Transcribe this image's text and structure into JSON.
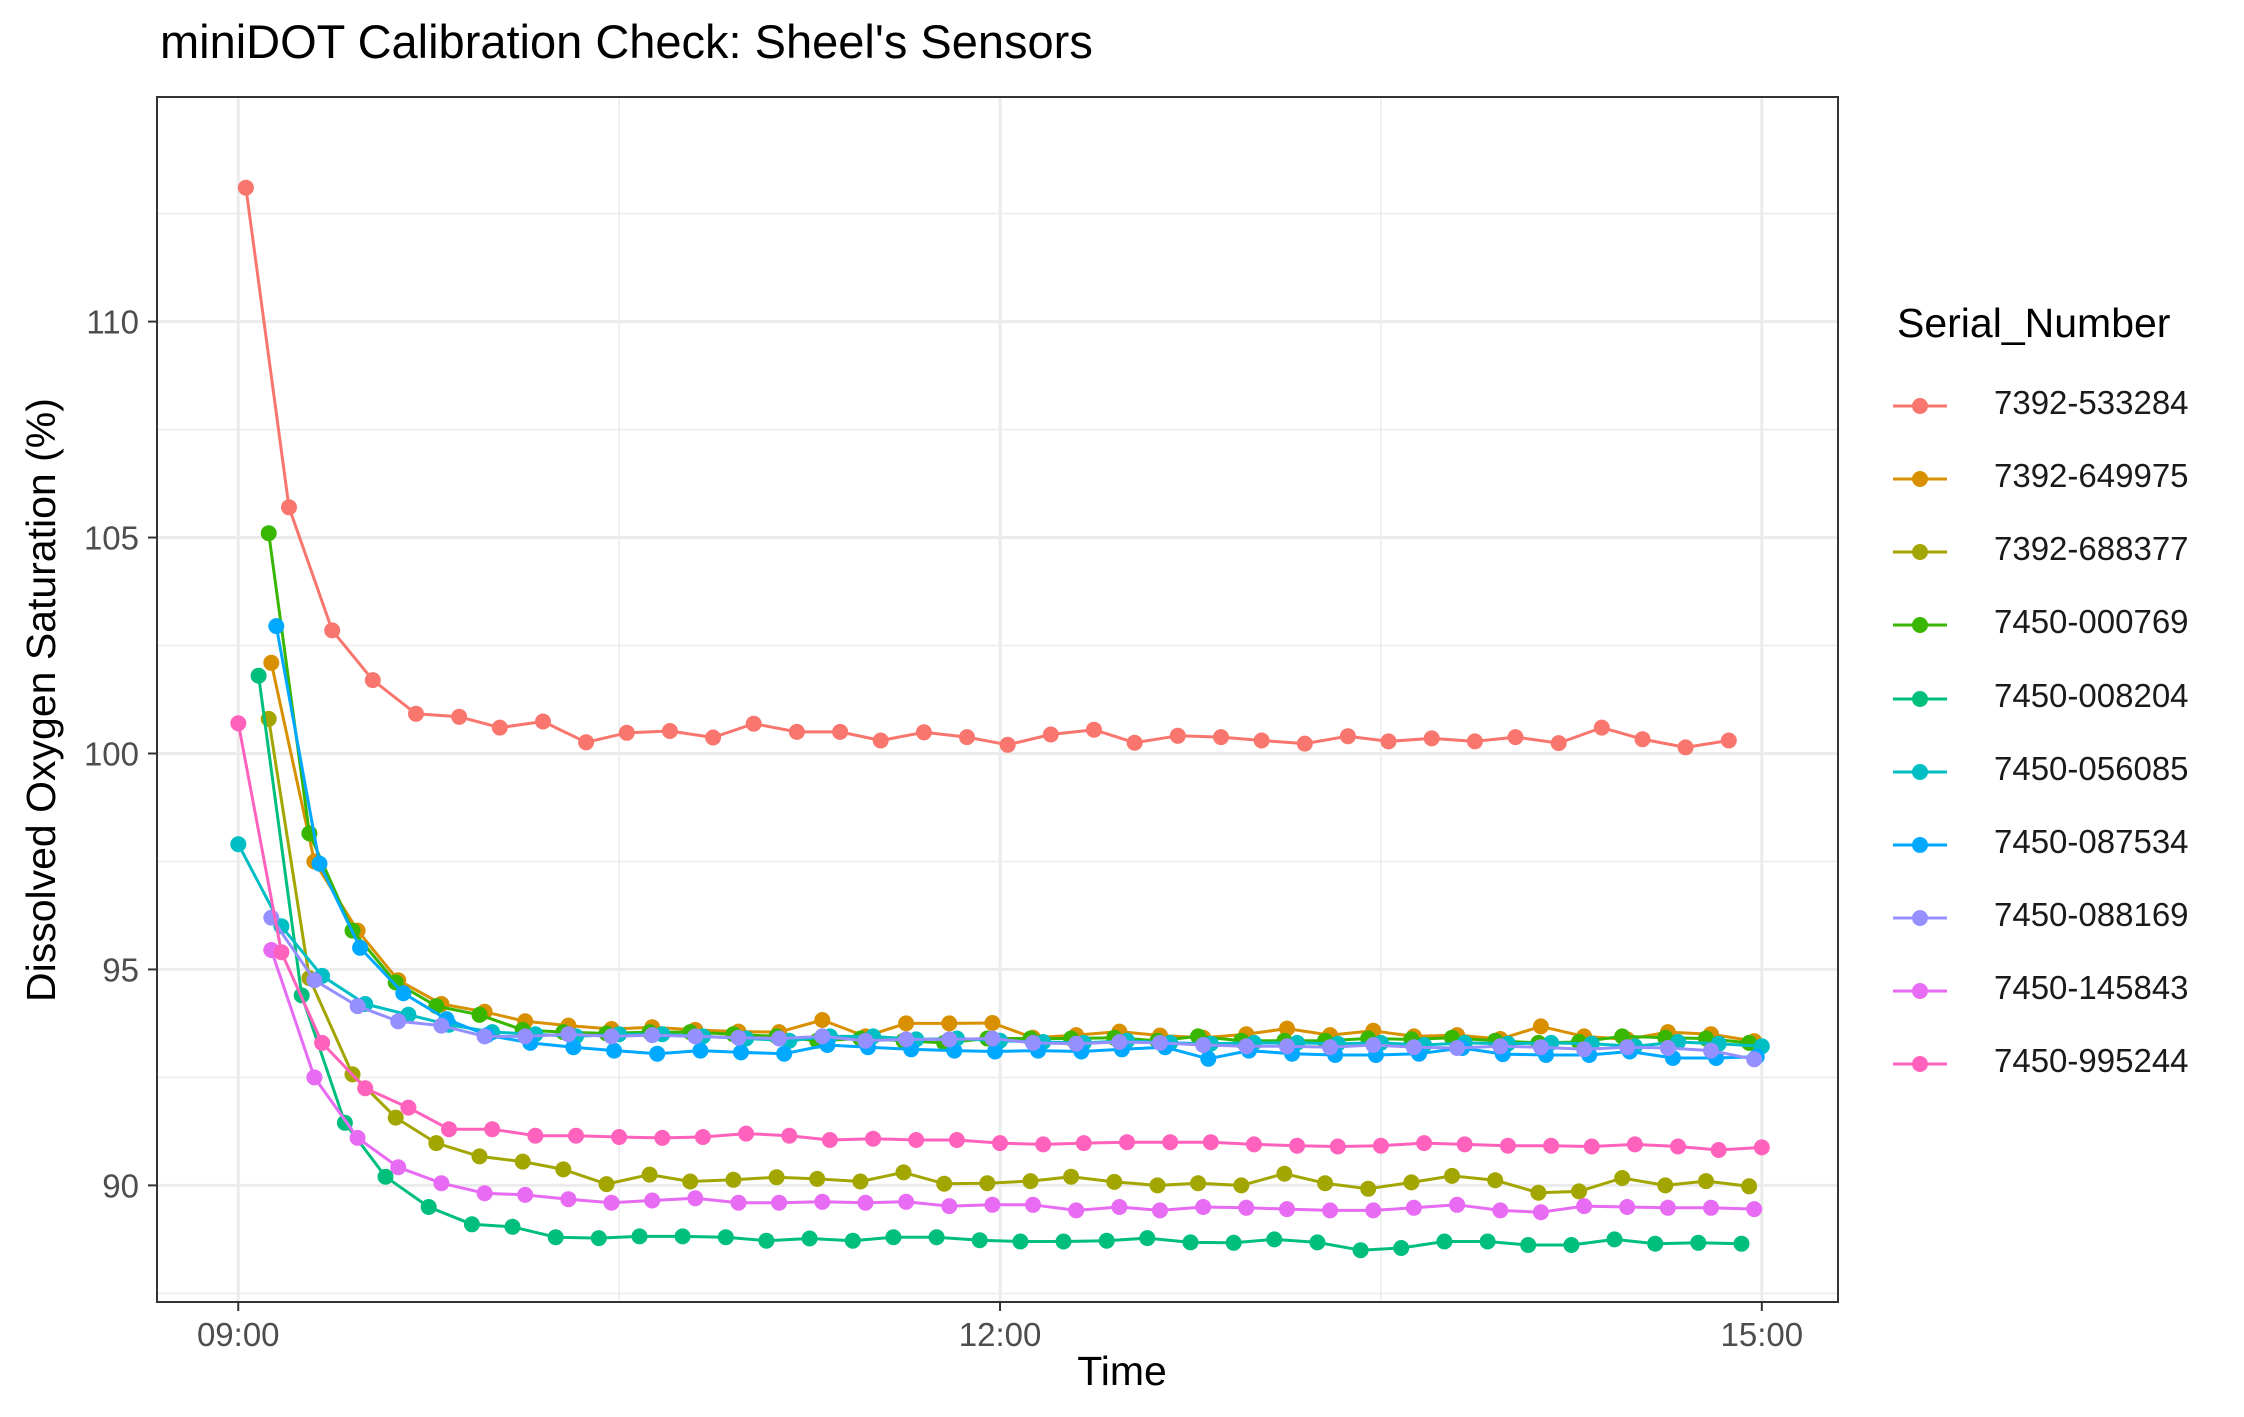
{
  "chart_data": {
    "type": "line",
    "title": "miniDOT Calibration Check: Sheel's Sensors",
    "xlabel": "Time",
    "ylabel": "Dissolved Oxygen Saturation (%)",
    "xlim": [
      -0.32,
      6.3
    ],
    "ylim": [
      87.3,
      115.2
    ],
    "x_ticks": [
      {
        "value": 0,
        "label": "09:00"
      },
      {
        "value": 3,
        "label": "12:00"
      },
      {
        "value": 6,
        "label": "15:00"
      }
    ],
    "y_ticks": [
      {
        "value": 90,
        "label": "90"
      },
      {
        "value": 95,
        "label": "95"
      },
      {
        "value": 100,
        "label": "100"
      },
      {
        "value": 105,
        "label": "105"
      },
      {
        "value": 110,
        "label": "110"
      }
    ],
    "grid": true,
    "legend": {
      "title": "Serial_Number",
      "placement": "right"
    },
    "series": [
      {
        "name": "7392-533284",
        "color": "#F8766D",
        "x": [
          0.03,
          0.2,
          0.37,
          0.53,
          0.7,
          0.87,
          1.03,
          1.2,
          1.37,
          1.53,
          1.7,
          1.87,
          2.03,
          2.2,
          2.37,
          2.53,
          2.7,
          2.87,
          3.03,
          3.2,
          3.37,
          3.53,
          3.7,
          3.87,
          4.03,
          4.2,
          4.37,
          4.53,
          4.7,
          4.87,
          5.03,
          5.2,
          5.37,
          5.53,
          5.7,
          5.87
        ],
        "y": [
          113.1,
          105.7,
          102.85,
          101.7,
          100.92,
          100.85,
          100.6,
          100.74,
          100.26,
          100.48,
          100.52,
          100.37,
          100.69,
          100.5,
          100.5,
          100.3,
          100.49,
          100.38,
          100.2,
          100.44,
          100.55,
          100.25,
          100.41,
          100.38,
          100.3,
          100.23,
          100.4,
          100.28,
          100.35,
          100.28,
          100.38,
          100.24,
          100.6,
          100.33,
          100.14,
          100.3
        ]
      },
      {
        "name": "7392-649975",
        "color": "#D89000",
        "x": [
          0.13,
          0.3,
          0.47,
          0.63,
          0.8,
          0.97,
          1.13,
          1.3,
          1.47,
          1.63,
          1.8,
          1.97,
          2.13,
          2.3,
          2.47,
          2.63,
          2.8,
          2.97,
          3.13,
          3.3,
          3.47,
          3.63,
          3.8,
          3.97,
          4.13,
          4.3,
          4.47,
          4.63,
          4.8,
          4.97,
          5.13,
          5.3,
          5.47,
          5.63,
          5.8,
          5.97
        ],
        "y": [
          102.1,
          97.5,
          95.9,
          94.75,
          94.2,
          94.02,
          93.8,
          93.7,
          93.62,
          93.66,
          93.6,
          93.56,
          93.55,
          93.83,
          93.45,
          93.75,
          93.75,
          93.76,
          93.42,
          93.48,
          93.56,
          93.47,
          93.42,
          93.5,
          93.63,
          93.48,
          93.58,
          93.45,
          93.48,
          93.39,
          93.68,
          93.45,
          93.38,
          93.55,
          93.5,
          93.34
        ]
      },
      {
        "name": "7392-688377",
        "color": "#A3A500",
        "x": [
          0.12,
          0.28,
          0.45,
          0.62,
          0.78,
          0.95,
          1.12,
          1.28,
          1.45,
          1.62,
          1.78,
          1.95,
          2.12,
          2.28,
          2.45,
          2.62,
          2.78,
          2.95,
          3.12,
          3.28,
          3.45,
          3.62,
          3.78,
          3.95,
          4.12,
          4.28,
          4.45,
          4.62,
          4.78,
          4.95,
          5.12,
          5.28,
          5.45,
          5.62,
          5.78,
          5.95
        ],
        "y": [
          100.8,
          94.8,
          92.57,
          91.57,
          90.98,
          90.67,
          90.55,
          90.37,
          90.03,
          90.25,
          90.09,
          90.13,
          90.19,
          90.15,
          90.09,
          90.3,
          90.04,
          90.05,
          90.1,
          90.2,
          90.08,
          90.0,
          90.05,
          90.0,
          90.27,
          90.05,
          89.92,
          90.07,
          90.22,
          90.12,
          89.83,
          89.86,
          90.17,
          90.0,
          90.1,
          89.98
        ]
      },
      {
        "name": "7450-000769",
        "color": "#39B600",
        "x": [
          0.12,
          0.28,
          0.45,
          0.62,
          0.78,
          0.95,
          1.12,
          1.28,
          1.45,
          1.62,
          1.78,
          1.95,
          2.12,
          2.28,
          2.45,
          2.62,
          2.78,
          2.95,
          3.12,
          3.28,
          3.45,
          3.62,
          3.78,
          3.95,
          4.12,
          4.28,
          4.45,
          4.62,
          4.78,
          4.95,
          5.12,
          5.28,
          5.45,
          5.62,
          5.78,
          5.95
        ],
        "y": [
          105.1,
          98.15,
          95.9,
          94.7,
          94.15,
          93.95,
          93.6,
          93.55,
          93.52,
          93.55,
          93.55,
          93.5,
          93.45,
          93.35,
          93.4,
          93.35,
          93.3,
          93.4,
          93.4,
          93.4,
          93.42,
          93.35,
          93.45,
          93.35,
          93.35,
          93.35,
          93.4,
          93.38,
          93.42,
          93.35,
          93.3,
          93.32,
          93.45,
          93.42,
          93.4,
          93.3
        ]
      },
      {
        "name": "7450-008204",
        "color": "#00BF7D",
        "x": [
          0.08,
          0.25,
          0.42,
          0.58,
          0.75,
          0.92,
          1.08,
          1.25,
          1.42,
          1.58,
          1.75,
          1.92,
          2.08,
          2.25,
          2.42,
          2.58,
          2.75,
          2.92,
          3.08,
          3.25,
          3.42,
          3.58,
          3.75,
          3.92,
          4.08,
          4.25,
          4.42,
          4.58,
          4.75,
          4.92,
          5.08,
          5.25,
          5.42,
          5.58,
          5.75,
          5.92
        ],
        "y": [
          101.8,
          94.4,
          91.45,
          90.2,
          89.5,
          89.1,
          89.04,
          88.8,
          88.78,
          88.82,
          88.82,
          88.8,
          88.72,
          88.77,
          88.72,
          88.8,
          88.8,
          88.73,
          88.7,
          88.7,
          88.72,
          88.78,
          88.68,
          88.67,
          88.75,
          88.68,
          88.5,
          88.55,
          88.7,
          88.7,
          88.62,
          88.62,
          88.75,
          88.65,
          88.67,
          88.65
        ]
      },
      {
        "name": "7450-056085",
        "color": "#00BFC4",
        "x": [
          0,
          0.17,
          0.33,
          0.5,
          0.67,
          0.83,
          1.0,
          1.17,
          1.33,
          1.5,
          1.67,
          1.83,
          2.0,
          2.17,
          2.33,
          2.5,
          2.67,
          2.83,
          3.0,
          3.17,
          3.33,
          3.5,
          3.67,
          3.83,
          4.0,
          4.17,
          4.33,
          4.5,
          4.67,
          4.83,
          5.0,
          5.17,
          5.33,
          5.5,
          5.67,
          5.83,
          6.0
        ],
        "y": [
          97.9,
          96.0,
          94.85,
          94.2,
          93.95,
          93.72,
          93.55,
          93.5,
          93.45,
          93.5,
          93.5,
          93.45,
          93.4,
          93.35,
          93.45,
          93.45,
          93.38,
          93.4,
          93.35,
          93.32,
          93.3,
          93.35,
          93.3,
          93.28,
          93.3,
          93.3,
          93.28,
          93.3,
          93.25,
          93.3,
          93.28,
          93.3,
          93.28,
          93.22,
          93.32,
          93.28,
          93.22
        ]
      },
      {
        "name": "7450-087534",
        "color": "#00A9FF",
        "x": [
          0.15,
          0.32,
          0.48,
          0.65,
          0.82,
          0.98,
          1.15,
          1.32,
          1.48,
          1.65,
          1.82,
          1.98,
          2.15,
          2.32,
          2.48,
          2.65,
          2.82,
          2.98,
          3.15,
          3.32,
          3.48,
          3.65,
          3.82,
          3.98,
          4.15,
          4.32,
          4.48,
          4.65,
          4.82,
          4.98,
          5.15,
          5.32,
          5.48,
          5.65,
          5.82,
          5.98
        ],
        "y": [
          102.95,
          97.45,
          95.5,
          94.45,
          93.85,
          93.48,
          93.3,
          93.2,
          93.12,
          93.05,
          93.12,
          93.08,
          93.05,
          93.25,
          93.2,
          93.15,
          93.12,
          93.1,
          93.12,
          93.1,
          93.15,
          93.2,
          92.93,
          93.12,
          93.05,
          93.02,
          93.02,
          93.05,
          93.18,
          93.04,
          93.02,
          93.02,
          93.1,
          92.95,
          92.95,
          92.98
        ]
      },
      {
        "name": "7450-088169",
        "color": "#9590FF",
        "x": [
          0.13,
          0.3,
          0.47,
          0.63,
          0.8,
          0.97,
          1.13,
          1.3,
          1.47,
          1.63,
          1.8,
          1.97,
          2.13,
          2.3,
          2.47,
          2.63,
          2.8,
          2.97,
          3.13,
          3.3,
          3.47,
          3.63,
          3.8,
          3.97,
          4.13,
          4.3,
          4.47,
          4.63,
          4.8,
          4.97,
          5.13,
          5.3,
          5.47,
          5.63,
          5.8,
          5.97
        ],
        "y": [
          96.2,
          94.75,
          94.15,
          93.8,
          93.7,
          93.45,
          93.45,
          93.5,
          93.45,
          93.48,
          93.45,
          93.42,
          93.4,
          93.45,
          93.35,
          93.38,
          93.38,
          93.4,
          93.3,
          93.28,
          93.32,
          93.3,
          93.25,
          93.22,
          93.22,
          93.2,
          93.25,
          93.2,
          93.18,
          93.22,
          93.2,
          93.15,
          93.2,
          93.18,
          93.12,
          92.92
        ]
      },
      {
        "name": "7450-145843",
        "color": "#E76BF3",
        "x": [
          0.13,
          0.3,
          0.47,
          0.63,
          0.8,
          0.97,
          1.13,
          1.3,
          1.47,
          1.63,
          1.8,
          1.97,
          2.13,
          2.3,
          2.47,
          2.63,
          2.8,
          2.97,
          3.13,
          3.3,
          3.47,
          3.63,
          3.8,
          3.97,
          4.13,
          4.3,
          4.47,
          4.63,
          4.8,
          4.97,
          5.13,
          5.3,
          5.47,
          5.63,
          5.8,
          5.97
        ],
        "y": [
          95.45,
          92.5,
          91.1,
          90.42,
          90.05,
          89.82,
          89.78,
          89.68,
          89.6,
          89.65,
          89.7,
          89.6,
          89.6,
          89.62,
          89.6,
          89.62,
          89.52,
          89.55,
          89.55,
          89.42,
          89.5,
          89.42,
          89.5,
          89.48,
          89.45,
          89.42,
          89.42,
          89.48,
          89.55,
          89.42,
          89.38,
          89.52,
          89.5,
          89.48,
          89.48,
          89.45
        ]
      },
      {
        "name": "7450-995244",
        "color": "#FF62BC",
        "x": [
          0,
          0.17,
          0.33,
          0.5,
          0.67,
          0.83,
          1.0,
          1.17,
          1.33,
          1.5,
          1.67,
          1.83,
          2.0,
          2.17,
          2.33,
          2.5,
          2.67,
          2.83,
          3.0,
          3.17,
          3.33,
          3.5,
          3.67,
          3.83,
          4.0,
          4.17,
          4.33,
          4.5,
          4.67,
          4.83,
          5.0,
          5.17,
          5.33,
          5.5,
          5.67,
          5.83,
          6.0
        ],
        "y": [
          100.7,
          95.4,
          93.3,
          92.25,
          91.8,
          91.3,
          91.3,
          91.15,
          91.15,
          91.12,
          91.1,
          91.12,
          91.2,
          91.15,
          91.05,
          91.08,
          91.05,
          91.05,
          90.98,
          90.95,
          90.98,
          91.0,
          91.0,
          91.0,
          90.95,
          90.92,
          90.9,
          90.92,
          90.98,
          90.95,
          90.92,
          90.92,
          90.9,
          90.95,
          90.9,
          90.82,
          90.88
        ]
      }
    ]
  }
}
